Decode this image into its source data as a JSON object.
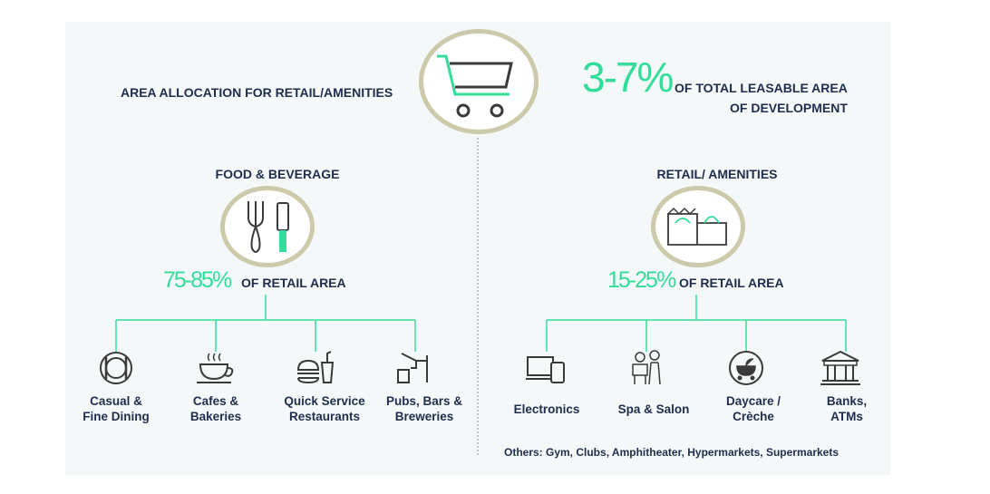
{
  "header": {
    "title": "AREA ALLOCATION FOR RETAIL/AMENITIES",
    "total_pct": "3-7%",
    "total_line1": "OF TOTAL LEASABLE AREA",
    "total_line2": "OF DEVELOPMENT",
    "icon": "shopping-cart-icon"
  },
  "food": {
    "title": "FOOD & BEVERAGE",
    "pct": "75-85%",
    "pct_suffix": "OF RETAIL AREA",
    "icon": "fork-knife-icon",
    "items": [
      {
        "line1": "Casual &",
        "line2": "Fine Dining",
        "icon": "dining-plate-icon"
      },
      {
        "line1": "Cafes &",
        "line2": "Bakeries",
        "icon": "coffee-cup-icon"
      },
      {
        "line1": "Quick Service",
        "line2": "Restaurants",
        "icon": "burger-drink-icon"
      },
      {
        "line1": "Pubs, Bars &",
        "line2": "Breweries",
        "icon": "beer-tap-icon"
      }
    ]
  },
  "retail": {
    "title": "RETAIL/ AMENITIES",
    "pct": "15-25%",
    "pct_suffix": "OF RETAIL AREA",
    "icon": "shopping-bags-icon",
    "items": [
      {
        "line1": "Electronics",
        "line2": "",
        "icon": "devices-icon"
      },
      {
        "line1": "Spa & Salon",
        "line2": "",
        "icon": "salon-chair-icon"
      },
      {
        "line1": "Daycare /",
        "line2": "Crèche",
        "icon": "stroller-icon"
      },
      {
        "line1": "Banks,",
        "line2": "ATMs",
        "icon": "bank-building-icon"
      }
    ]
  },
  "others": "Others: Gym, Clubs, Amphitheater, Hypermarkets, Supermarkets",
  "colors": {
    "accent": "#33dd99",
    "navy": "#1f2d4d",
    "ring": "#cdc9ab",
    "panel": "#f4f8f8"
  }
}
